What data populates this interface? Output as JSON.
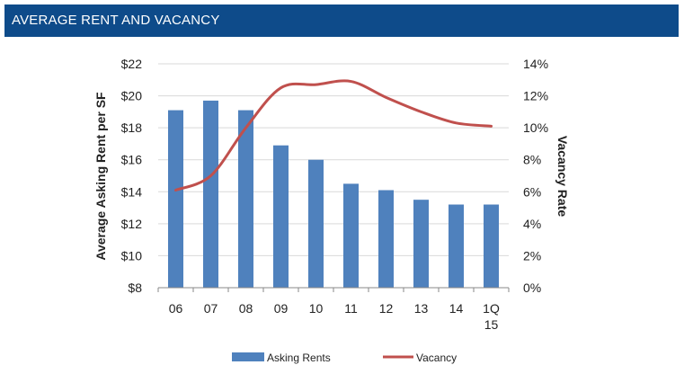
{
  "header": {
    "title": "AVERAGE RENT AND VACANCY"
  },
  "chart_data": {
    "type": "bar+line",
    "categories": [
      "06",
      "07",
      "08",
      "09",
      "10",
      "11",
      "12",
      "13",
      "14",
      "1Q\n15"
    ],
    "y_left": {
      "label": "Average Asking Rent per SF",
      "min": 8,
      "max": 22,
      "step": 2,
      "tick_labels": [
        "$8",
        "$10",
        "$12",
        "$14",
        "$16",
        "$18",
        "$20",
        "$22"
      ]
    },
    "y_right": {
      "label": "Vacancy Rate",
      "min": 0,
      "max": 14,
      "step": 2,
      "tick_labels": [
        "0%",
        "2%",
        "4%",
        "6%",
        "8%",
        "10%",
        "12%",
        "14%"
      ]
    },
    "series": [
      {
        "name": "Asking Rents",
        "kind": "bar",
        "axis": "left",
        "color": "#4f81bd",
        "values": [
          19.1,
          19.7,
          19.1,
          16.9,
          16.0,
          14.5,
          14.1,
          13.5,
          13.2,
          13.2
        ]
      },
      {
        "name": "Vacancy",
        "kind": "line",
        "axis": "right",
        "color": "#c0504d",
        "values": [
          6.1,
          7.0,
          10.0,
          12.5,
          12.7,
          12.9,
          11.9,
          11.0,
          10.3,
          10.1
        ]
      }
    ],
    "grid": true,
    "legend_position": "bottom"
  }
}
